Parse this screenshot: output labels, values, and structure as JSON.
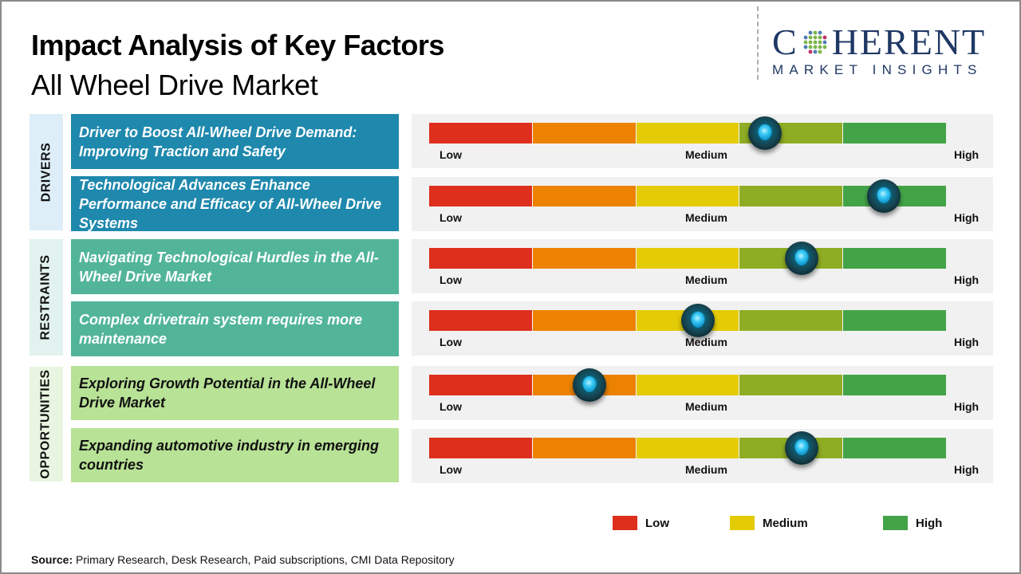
{
  "header": {
    "title": "Impact Analysis of Key Factors",
    "subtitle": "All Wheel Drive Market"
  },
  "logo": {
    "main_left": "C",
    "main_right": "HERENT",
    "sub": "MARKET INSIGHTS",
    "icon": "globe-dots-icon"
  },
  "categories": {
    "drivers": "DRIVERS",
    "restraints": "RESTRAINTS",
    "opportunities": "OPPORTUNITIES"
  },
  "scale_labels": {
    "low": "Low",
    "medium": "Medium",
    "high": "High"
  },
  "segment_colors": [
    "#dd2f1c",
    "#ec8200",
    "#e3cb06",
    "#8fad24",
    "#43a447"
  ],
  "legend": [
    {
      "label": "Low",
      "color": "#dd2f1c"
    },
    {
      "label": "Medium",
      "color": "#e3cb06"
    },
    {
      "label": "High",
      "color": "#43a447"
    }
  ],
  "source": {
    "label": "Source:",
    "text": " Primary Research, Desk Research, Paid subscriptions, CMI Data Repository"
  },
  "chart_data": {
    "type": "gauge",
    "title": "Impact Analysis of Key Factors",
    "subtitle": "All Wheel Drive Market",
    "scale": {
      "min": 0,
      "max": 1,
      "labels": [
        "Low",
        "Medium",
        "High"
      ],
      "segments": 5
    },
    "factors": [
      {
        "category": "Drivers",
        "text": "Driver to Boost All-Wheel Drive Demand: Improving Traction and Safety",
        "impact": 0.65
      },
      {
        "category": "Drivers",
        "text": "Technological Advances Enhance Performance and Efficacy of All-Wheel Drive Systems",
        "impact": 0.88
      },
      {
        "category": "Restraints",
        "text": "Navigating Technological Hurdles in the All-Wheel Drive Market",
        "impact": 0.72
      },
      {
        "category": "Restraints",
        "text": "Complex drivetrain system requires more maintenance",
        "impact": 0.52
      },
      {
        "category": "Opportunities",
        "text": "Exploring Growth Potential in the All-Wheel Drive Market",
        "impact": 0.31
      },
      {
        "category": "Opportunities",
        "text": "Expanding automotive industry in emerging countries",
        "impact": 0.72
      }
    ],
    "legend": [
      "Low",
      "Medium",
      "High"
    ],
    "legend_position": "bottom-right"
  }
}
